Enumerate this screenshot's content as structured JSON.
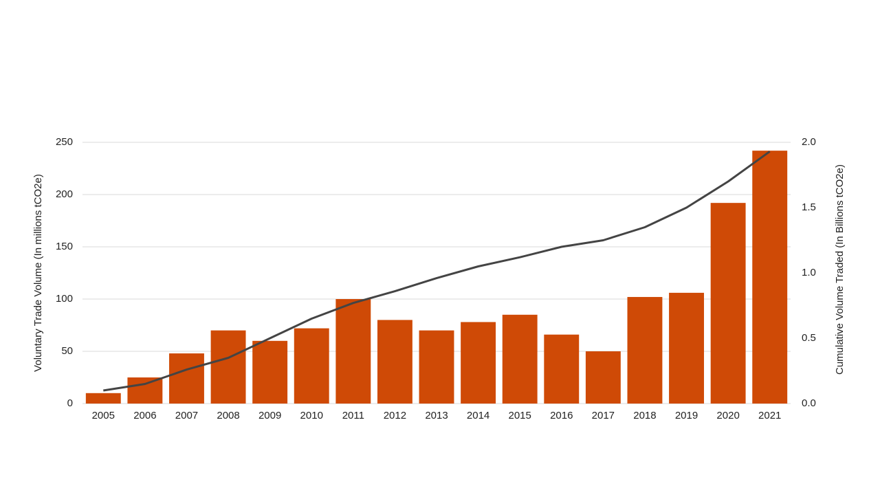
{
  "chart_data": {
    "type": "combo",
    "y_label": "Voluntary Trade Volume (In millions tCO2e)",
    "y2_label": "Cumulative Volume Traded (In Billions tCO2e)",
    "categories": [
      "2005",
      "2006",
      "2007",
      "2008",
      "2009",
      "2010",
      "2011",
      "2012",
      "2013",
      "2014",
      "2015",
      "2016",
      "2017",
      "2018",
      "2019",
      "2020",
      "2021"
    ],
    "series": [
      {
        "type": "bar",
        "color": "#cf4a06",
        "values": [
          10,
          25,
          48,
          70,
          60,
          72,
          100,
          80,
          70,
          78,
          85,
          66,
          50,
          102,
          106,
          192,
          242
        ]
      },
      {
        "type": "line",
        "axis": "y2",
        "color": "#444444",
        "values": [
          0.1,
          0.15,
          0.26,
          0.35,
          0.5,
          0.65,
          0.77,
          0.86,
          0.96,
          1.05,
          1.12,
          1.2,
          1.25,
          1.35,
          1.5,
          1.7,
          1.93
        ]
      }
    ],
    "ylim": [
      0,
      250
    ],
    "yticks": [
      0,
      50,
      100,
      150,
      200,
      250
    ],
    "y2lim": [
      0,
      2
    ],
    "y2ticks": [
      {
        "value": 0,
        "label": "0.0"
      },
      {
        "value": 0.5,
        "label": "0.5"
      },
      {
        "value": 1,
        "label": "1.0"
      },
      {
        "value": 1.5,
        "label": "1.5"
      },
      {
        "value": 2,
        "label": "2.0"
      }
    ],
    "grid": true
  }
}
